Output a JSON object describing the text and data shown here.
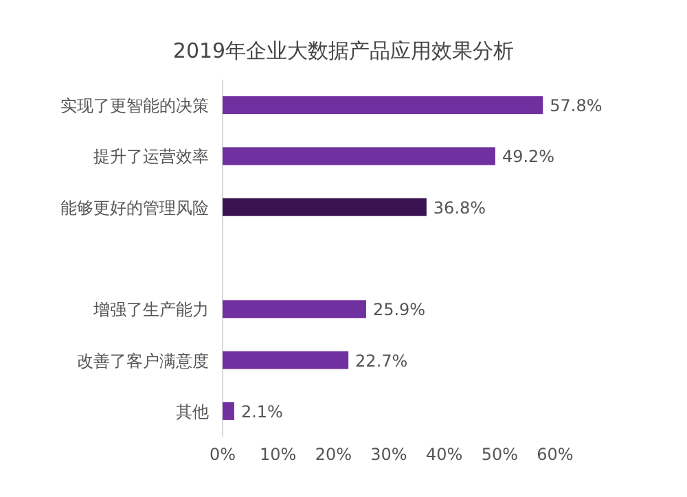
{
  "chart_data": {
    "type": "bar",
    "orientation": "horizontal",
    "title": "2019年企业大数据产品应用效果分析",
    "categories": [
      "实现了更智能的决策",
      "提升了运营效率",
      "能够更好的管理风险",
      null,
      "增强了生产能力",
      "改善了客户满意度",
      "其他"
    ],
    "values": [
      57.8,
      49.2,
      36.8,
      null,
      25.9,
      22.7,
      2.1
    ],
    "value_labels": [
      "57.8%",
      "49.2%",
      "36.8%",
      null,
      "25.9%",
      "22.7%",
      "2.1%"
    ],
    "colors": [
      "#7030a0",
      "#7030a0",
      "#3a1452",
      null,
      "#7030a0",
      "#7030a0",
      "#7030a0"
    ],
    "xlim": [
      0,
      60
    ],
    "xticks": [
      {
        "value": 0,
        "label": "0%"
      },
      {
        "value": 10,
        "label": "10%"
      },
      {
        "value": 20,
        "label": "20%"
      },
      {
        "value": 30,
        "label": "30%"
      },
      {
        "value": 40,
        "label": "40%"
      },
      {
        "value": 50,
        "label": "50%"
      },
      {
        "value": 60,
        "label": "60%"
      }
    ],
    "grid": false
  }
}
